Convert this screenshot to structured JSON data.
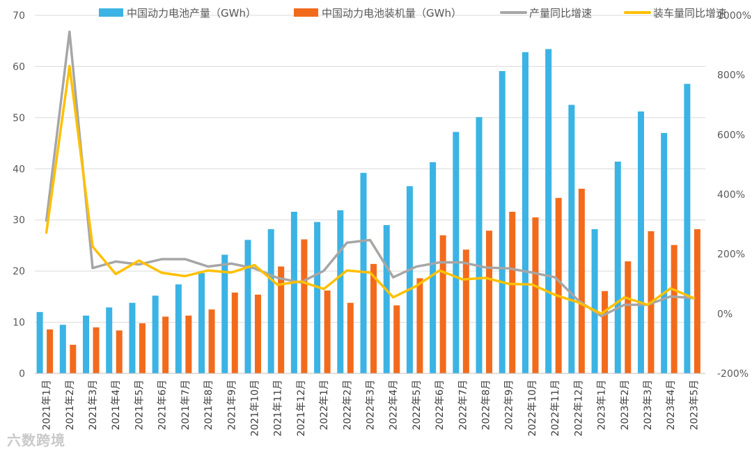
{
  "chart_data": {
    "type": "bar",
    "categories": [
      "2021年1月",
      "2021年2月",
      "2021年3月",
      "2021年4月",
      "2021年5月",
      "2021年6月",
      "2021年7月",
      "2021年8月",
      "2021年9月",
      "2021年10月",
      "2021年11月",
      "2021年12月",
      "2022年1月",
      "2022年2月",
      "2022年3月",
      "2022年4月",
      "2022年5月",
      "2022年6月",
      "2022年7月",
      "2022年8月",
      "2022年9月",
      "2022年10月",
      "2022年11月",
      "2022年12月",
      "2023年1月",
      "2023年2月",
      "2023年3月",
      "2023年4月",
      "2023年5月"
    ],
    "series": [
      {
        "name": "中国动力电池产量（GWh）",
        "kind": "bar",
        "axis": "left",
        "color": "#3bb3e4",
        "values": [
          12.0,
          9.5,
          11.3,
          12.9,
          13.8,
          15.2,
          17.4,
          19.6,
          23.2,
          26.1,
          28.2,
          31.6,
          29.6,
          31.9,
          39.2,
          29.0,
          36.6,
          41.3,
          47.2,
          50.1,
          59.1,
          62.8,
          63.4,
          52.5,
          28.2,
          41.4,
          51.2,
          47.0,
          56.6
        ]
      },
      {
        "name": "中国动力电池装机量（GWh）",
        "kind": "bar",
        "axis": "left",
        "color": "#f26b1d",
        "values": [
          8.6,
          5.6,
          9.0,
          8.4,
          9.8,
          11.1,
          11.3,
          12.5,
          15.8,
          15.4,
          20.9,
          26.2,
          16.2,
          13.8,
          21.4,
          13.3,
          18.6,
          27.0,
          24.2,
          27.9,
          31.6,
          30.5,
          34.3,
          36.1,
          16.1,
          21.9,
          27.8,
          25.1,
          28.2
        ]
      },
      {
        "name": "产量同比增速",
        "kind": "line",
        "axis": "right",
        "color": "#a6a6a6",
        "values": [
          312,
          945,
          153,
          175,
          165,
          183,
          183,
          158,
          168,
          152,
          120,
          105,
          144,
          238,
          247,
          122,
          158,
          172,
          172,
          155,
          152,
          138,
          122,
          45,
          -8,
          30,
          30,
          58,
          52
        ]
      },
      {
        "name": "装车量同比增速",
        "kind": "line",
        "axis": "right",
        "color": "#ffc000",
        "values": [
          272,
          830,
          225,
          133,
          178,
          137,
          126,
          145,
          138,
          163,
          97,
          108,
          83,
          145,
          138,
          55,
          93,
          145,
          115,
          120,
          100,
          98,
          63,
          38,
          0,
          55,
          30,
          85,
          52
        ]
      }
    ],
    "y_left": {
      "min": 0,
      "max": 70,
      "ticks": [
        "0",
        "10",
        "20",
        "30",
        "40",
        "50",
        "60",
        "70"
      ],
      "tick_values": [
        0,
        10,
        20,
        30,
        40,
        50,
        60,
        70
      ]
    },
    "y_right": {
      "min": -200,
      "max": 1000,
      "ticks": [
        "-200%",
        "0%",
        "200%",
        "400%",
        "600%",
        "800%",
        "1000%"
      ],
      "tick_values": [
        -200,
        0,
        200,
        400,
        600,
        800,
        1000
      ]
    },
    "grid": true,
    "legend": "top"
  },
  "watermark": "六数跨境"
}
